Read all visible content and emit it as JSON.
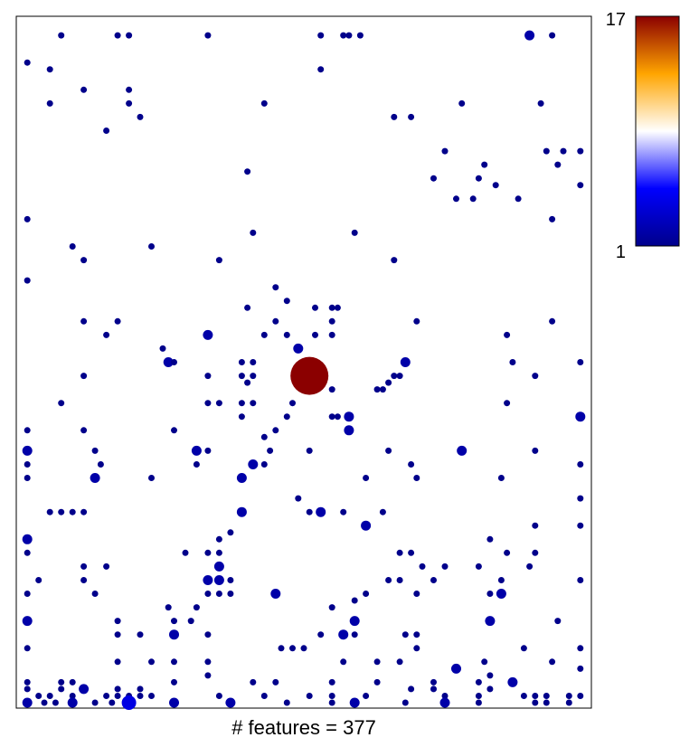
{
  "chart_data": {
    "type": "scatter",
    "title": "",
    "xlabel": "# features = 377",
    "ylabel": "",
    "xlim": [
      0,
      1
    ],
    "ylim": [
      0,
      1
    ],
    "grid": false,
    "colorbar": {
      "min_label": "1",
      "max_label": "17",
      "min": 1,
      "max": 17,
      "colors": [
        "#00008B",
        "#0000FF",
        "#FFFFFF",
        "#FFA500",
        "#8B0000"
      ],
      "placement": "right"
    },
    "points": [
      [
        0.07,
        0.98,
        1
      ],
      [
        0.17,
        0.98,
        1
      ],
      [
        0.19,
        0.98,
        1
      ],
      [
        0.33,
        0.98,
        1
      ],
      [
        0.53,
        0.98,
        1
      ],
      [
        0.57,
        0.98,
        1
      ],
      [
        0.58,
        0.98,
        1
      ],
      [
        0.6,
        0.98,
        1
      ],
      [
        0.9,
        0.98,
        2
      ],
      [
        0.94,
        0.98,
        1
      ],
      [
        0.01,
        0.94,
        1
      ],
      [
        0.05,
        0.93,
        1
      ],
      [
        0.53,
        0.93,
        1
      ],
      [
        0.11,
        0.9,
        1
      ],
      [
        0.19,
        0.9,
        1
      ],
      [
        0.05,
        0.88,
        1
      ],
      [
        0.19,
        0.88,
        1
      ],
      [
        0.43,
        0.88,
        1
      ],
      [
        0.78,
        0.88,
        1
      ],
      [
        0.92,
        0.88,
        1
      ],
      [
        0.21,
        0.86,
        1
      ],
      [
        0.66,
        0.86,
        1
      ],
      [
        0.69,
        0.86,
        1
      ],
      [
        0.15,
        0.84,
        1
      ],
      [
        0.75,
        0.81,
        1
      ],
      [
        0.93,
        0.81,
        1
      ],
      [
        0.96,
        0.81,
        1
      ],
      [
        0.99,
        0.81,
        1
      ],
      [
        0.82,
        0.79,
        1
      ],
      [
        0.95,
        0.79,
        1
      ],
      [
        0.4,
        0.78,
        1
      ],
      [
        0.73,
        0.77,
        1
      ],
      [
        0.81,
        0.77,
        1
      ],
      [
        0.84,
        0.76,
        1
      ],
      [
        0.99,
        0.76,
        1
      ],
      [
        0.77,
        0.74,
        1
      ],
      [
        0.8,
        0.74,
        1
      ],
      [
        0.88,
        0.74,
        1
      ],
      [
        0.01,
        0.71,
        1
      ],
      [
        0.94,
        0.71,
        1
      ],
      [
        0.41,
        0.69,
        1
      ],
      [
        0.59,
        0.69,
        1
      ],
      [
        0.09,
        0.67,
        1
      ],
      [
        0.23,
        0.67,
        1
      ],
      [
        0.11,
        0.65,
        1
      ],
      [
        0.35,
        0.65,
        1
      ],
      [
        0.66,
        0.65,
        1
      ],
      [
        0.01,
        0.62,
        1
      ],
      [
        0.45,
        0.61,
        1
      ],
      [
        0.47,
        0.59,
        1
      ],
      [
        0.4,
        0.58,
        1
      ],
      [
        0.52,
        0.58,
        1
      ],
      [
        0.55,
        0.58,
        1
      ],
      [
        0.56,
        0.58,
        1
      ],
      [
        0.11,
        0.56,
        1
      ],
      [
        0.17,
        0.56,
        1
      ],
      [
        0.45,
        0.56,
        1
      ],
      [
        0.55,
        0.56,
        1
      ],
      [
        0.7,
        0.56,
        1
      ],
      [
        0.94,
        0.56,
        1
      ],
      [
        0.15,
        0.54,
        1
      ],
      [
        0.33,
        0.54,
        2
      ],
      [
        0.43,
        0.54,
        1
      ],
      [
        0.47,
        0.54,
        1
      ],
      [
        0.52,
        0.54,
        1
      ],
      [
        0.55,
        0.54,
        1
      ],
      [
        0.86,
        0.54,
        1
      ],
      [
        0.25,
        0.52,
        1
      ],
      [
        0.49,
        0.52,
        2
      ],
      [
        0.26,
        0.5,
        2
      ],
      [
        0.27,
        0.5,
        1
      ],
      [
        0.39,
        0.5,
        1
      ],
      [
        0.41,
        0.5,
        1
      ],
      [
        0.68,
        0.5,
        2
      ],
      [
        0.87,
        0.5,
        1
      ],
      [
        0.99,
        0.5,
        1
      ],
      [
        0.11,
        0.48,
        1
      ],
      [
        0.33,
        0.48,
        1
      ],
      [
        0.39,
        0.48,
        1
      ],
      [
        0.41,
        0.48,
        1
      ],
      [
        0.51,
        0.48,
        17
      ],
      [
        0.66,
        0.48,
        1
      ],
      [
        0.67,
        0.48,
        1
      ],
      [
        0.91,
        0.48,
        1
      ],
      [
        0.4,
        0.47,
        1
      ],
      [
        0.55,
        0.46,
        1
      ],
      [
        0.63,
        0.46,
        1
      ],
      [
        0.64,
        0.46,
        1
      ],
      [
        0.65,
        0.47,
        1
      ],
      [
        0.07,
        0.44,
        1
      ],
      [
        0.33,
        0.44,
        1
      ],
      [
        0.35,
        0.44,
        1
      ],
      [
        0.39,
        0.44,
        1
      ],
      [
        0.41,
        0.44,
        1
      ],
      [
        0.48,
        0.44,
        1
      ],
      [
        0.86,
        0.44,
        1
      ],
      [
        0.39,
        0.42,
        1
      ],
      [
        0.47,
        0.42,
        1
      ],
      [
        0.55,
        0.42,
        1
      ],
      [
        0.56,
        0.42,
        1
      ],
      [
        0.58,
        0.42,
        2
      ],
      [
        0.99,
        0.42,
        2
      ],
      [
        0.01,
        0.4,
        1
      ],
      [
        0.11,
        0.4,
        1
      ],
      [
        0.27,
        0.4,
        1
      ],
      [
        0.45,
        0.4,
        1
      ],
      [
        0.58,
        0.4,
        2
      ],
      [
        0.43,
        0.39,
        1
      ],
      [
        0.01,
        0.37,
        2
      ],
      [
        0.13,
        0.37,
        1
      ],
      [
        0.31,
        0.37,
        2
      ],
      [
        0.33,
        0.37,
        1
      ],
      [
        0.44,
        0.37,
        1
      ],
      [
        0.51,
        0.37,
        1
      ],
      [
        0.65,
        0.37,
        1
      ],
      [
        0.78,
        0.37,
        2
      ],
      [
        0.91,
        0.37,
        1
      ],
      [
        0.01,
        0.35,
        1
      ],
      [
        0.14,
        0.35,
        1
      ],
      [
        0.31,
        0.35,
        1
      ],
      [
        0.41,
        0.35,
        2
      ],
      [
        0.43,
        0.35,
        1
      ],
      [
        0.69,
        0.35,
        1
      ],
      [
        0.99,
        0.35,
        1
      ],
      [
        0.01,
        0.33,
        1
      ],
      [
        0.13,
        0.33,
        2
      ],
      [
        0.23,
        0.33,
        1
      ],
      [
        0.39,
        0.33,
        2
      ],
      [
        0.61,
        0.33,
        1
      ],
      [
        0.7,
        0.33,
        1
      ],
      [
        0.85,
        0.33,
        1
      ],
      [
        0.49,
        0.3,
        1
      ],
      [
        0.99,
        0.3,
        1
      ],
      [
        0.05,
        0.28,
        1
      ],
      [
        0.07,
        0.28,
        1
      ],
      [
        0.09,
        0.28,
        1
      ],
      [
        0.11,
        0.28,
        1
      ],
      [
        0.39,
        0.28,
        2
      ],
      [
        0.51,
        0.28,
        1
      ],
      [
        0.53,
        0.28,
        2
      ],
      [
        0.57,
        0.28,
        1
      ],
      [
        0.64,
        0.28,
        1
      ],
      [
        0.91,
        0.26,
        1
      ],
      [
        0.99,
        0.26,
        1
      ],
      [
        0.61,
        0.26,
        2
      ],
      [
        0.35,
        0.24,
        1
      ],
      [
        0.01,
        0.24,
        2
      ],
      [
        0.37,
        0.25,
        1
      ],
      [
        0.83,
        0.24,
        1
      ],
      [
        0.01,
        0.22,
        1
      ],
      [
        0.29,
        0.22,
        1
      ],
      [
        0.33,
        0.22,
        1
      ],
      [
        0.35,
        0.22,
        1
      ],
      [
        0.67,
        0.22,
        1
      ],
      [
        0.69,
        0.22,
        1
      ],
      [
        0.86,
        0.22,
        1
      ],
      [
        0.91,
        0.22,
        1
      ],
      [
        0.35,
        0.2,
        2
      ],
      [
        0.71,
        0.2,
        1
      ],
      [
        0.75,
        0.2,
        1
      ],
      [
        0.81,
        0.2,
        1
      ],
      [
        0.9,
        0.2,
        1
      ],
      [
        0.11,
        0.2,
        1
      ],
      [
        0.15,
        0.2,
        1
      ],
      [
        0.03,
        0.18,
        1
      ],
      [
        0.11,
        0.18,
        1
      ],
      [
        0.33,
        0.18,
        2
      ],
      [
        0.35,
        0.18,
        2
      ],
      [
        0.37,
        0.18,
        1
      ],
      [
        0.65,
        0.18,
        1
      ],
      [
        0.67,
        0.18,
        1
      ],
      [
        0.73,
        0.18,
        1
      ],
      [
        0.85,
        0.18,
        1
      ],
      [
        0.99,
        0.18,
        1
      ],
      [
        0.01,
        0.16,
        1
      ],
      [
        0.13,
        0.16,
        1
      ],
      [
        0.33,
        0.16,
        1
      ],
      [
        0.35,
        0.16,
        1
      ],
      [
        0.37,
        0.16,
        1
      ],
      [
        0.45,
        0.16,
        2
      ],
      [
        0.61,
        0.16,
        1
      ],
      [
        0.7,
        0.16,
        1
      ],
      [
        0.83,
        0.16,
        1
      ],
      [
        0.85,
        0.16,
        2
      ],
      [
        0.59,
        0.15,
        1
      ],
      [
        0.26,
        0.14,
        1
      ],
      [
        0.31,
        0.14,
        1
      ],
      [
        0.55,
        0.14,
        1
      ],
      [
        0.01,
        0.12,
        2
      ],
      [
        0.17,
        0.12,
        1
      ],
      [
        0.27,
        0.12,
        1
      ],
      [
        0.3,
        0.12,
        1
      ],
      [
        0.59,
        0.12,
        2
      ],
      [
        0.83,
        0.12,
        2
      ],
      [
        0.95,
        0.12,
        1
      ],
      [
        0.17,
        0.1,
        1
      ],
      [
        0.21,
        0.1,
        1
      ],
      [
        0.27,
        0.1,
        2
      ],
      [
        0.33,
        0.1,
        1
      ],
      [
        0.53,
        0.1,
        1
      ],
      [
        0.57,
        0.1,
        2
      ],
      [
        0.59,
        0.1,
        1
      ],
      [
        0.68,
        0.1,
        1
      ],
      [
        0.7,
        0.1,
        1
      ],
      [
        0.01,
        0.08,
        1
      ],
      [
        0.46,
        0.08,
        1
      ],
      [
        0.48,
        0.08,
        1
      ],
      [
        0.5,
        0.08,
        1
      ],
      [
        0.7,
        0.08,
        1
      ],
      [
        0.89,
        0.08,
        1
      ],
      [
        0.99,
        0.08,
        1
      ],
      [
        0.17,
        0.06,
        1
      ],
      [
        0.33,
        0.06,
        1
      ],
      [
        0.57,
        0.06,
        1
      ],
      [
        0.82,
        0.06,
        1
      ],
      [
        0.23,
        0.06,
        1
      ],
      [
        0.27,
        0.06,
        1
      ],
      [
        0.63,
        0.06,
        1
      ],
      [
        0.67,
        0.06,
        1
      ],
      [
        0.77,
        0.05,
        2
      ],
      [
        0.94,
        0.06,
        1
      ],
      [
        0.99,
        0.05,
        1
      ],
      [
        0.33,
        0.04,
        1
      ],
      [
        0.83,
        0.04,
        1
      ],
      [
        0.01,
        0.03,
        1
      ],
      [
        0.07,
        0.03,
        1
      ],
      [
        0.09,
        0.03,
        1
      ],
      [
        0.27,
        0.03,
        1
      ],
      [
        0.41,
        0.03,
        1
      ],
      [
        0.45,
        0.03,
        1
      ],
      [
        0.55,
        0.03,
        1
      ],
      [
        0.63,
        0.03,
        1
      ],
      [
        0.73,
        0.03,
        1
      ],
      [
        0.81,
        0.03,
        1
      ],
      [
        0.87,
        0.03,
        2
      ],
      [
        0.01,
        0.02,
        1
      ],
      [
        0.07,
        0.02,
        1
      ],
      [
        0.11,
        0.02,
        2
      ],
      [
        0.17,
        0.02,
        1
      ],
      [
        0.21,
        0.02,
        1
      ],
      [
        0.69,
        0.02,
        1
      ],
      [
        0.73,
        0.02,
        1
      ],
      [
        0.83,
        0.02,
        1
      ],
      [
        0.03,
        0.01,
        1
      ],
      [
        0.05,
        0.01,
        1
      ],
      [
        0.09,
        0.01,
        1
      ],
      [
        0.17,
        0.01,
        1
      ],
      [
        0.19,
        0.01,
        1
      ],
      [
        0.21,
        0.01,
        1
      ],
      [
        0.23,
        0.01,
        1
      ],
      [
        0.35,
        0.01,
        1
      ],
      [
        0.43,
        0.01,
        1
      ],
      [
        0.51,
        0.01,
        1
      ],
      [
        0.55,
        0.01,
        1
      ],
      [
        0.61,
        0.01,
        1
      ],
      [
        0.75,
        0.01,
        1
      ],
      [
        0.81,
        0.01,
        1
      ],
      [
        0.89,
        0.01,
        1
      ],
      [
        0.91,
        0.01,
        1
      ],
      [
        0.99,
        0.01,
        1
      ],
      [
        0.15,
        0.01,
        1
      ],
      [
        0.97,
        0.01,
        1
      ],
      [
        0.93,
        0.01,
        1
      ],
      [
        0.01,
        0.0,
        2
      ],
      [
        0.04,
        0.0,
        1
      ],
      [
        0.06,
        0.0,
        1
      ],
      [
        0.09,
        0.0,
        2
      ],
      [
        0.13,
        0.0,
        1
      ],
      [
        0.16,
        0.0,
        1
      ],
      [
        0.19,
        0.0,
        4
      ],
      [
        0.27,
        0.0,
        2
      ],
      [
        0.37,
        0.0,
        2
      ],
      [
        0.47,
        0.0,
        1
      ],
      [
        0.55,
        0.0,
        1
      ],
      [
        0.59,
        0.0,
        2
      ],
      [
        0.68,
        0.0,
        1
      ],
      [
        0.75,
        0.0,
        2
      ],
      [
        0.81,
        0.0,
        1
      ],
      [
        0.91,
        0.0,
        1
      ],
      [
        0.93,
        0.0,
        1
      ],
      [
        0.97,
        0.0,
        1
      ]
    ]
  }
}
